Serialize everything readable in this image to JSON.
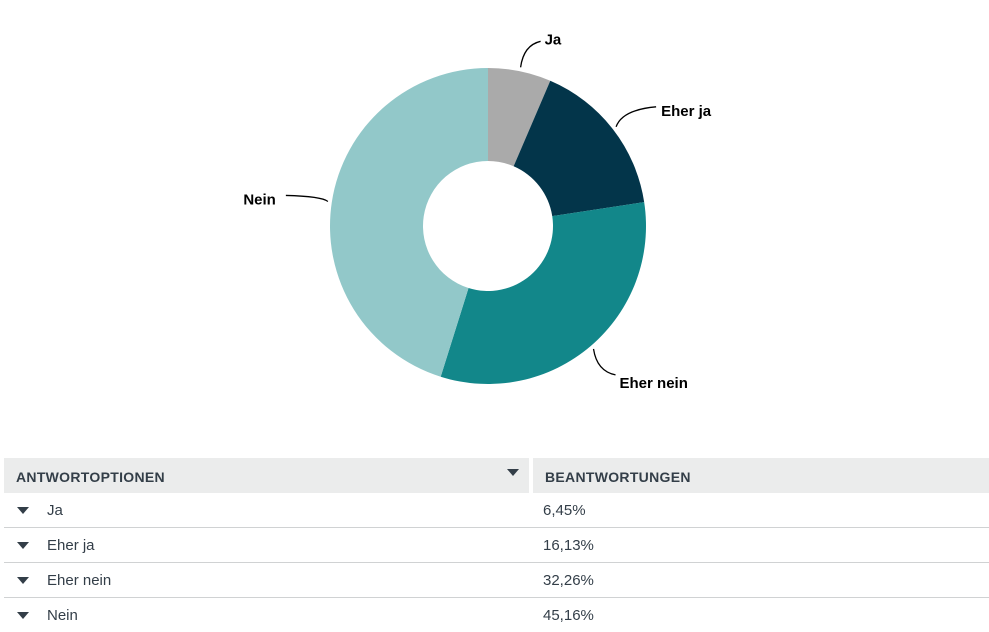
{
  "chart_data": {
    "type": "pie",
    "donut": true,
    "categories": [
      "Ja",
      "Eher ja",
      "Eher nein",
      "Nein"
    ],
    "values": [
      6.45,
      16.13,
      32.26,
      45.16
    ],
    "unit": "%",
    "colors": [
      "#aaaaaa",
      "#03354a",
      "#12878a",
      "#92c8c9"
    ],
    "start_angle": "12 o'clock",
    "direction": "clockwise",
    "legend": "none (slice labels with leader lines)"
  },
  "table": {
    "headers": {
      "options": "ANTWORTOPTIONEN",
      "responses": "BEANTWORTUNGEN"
    },
    "rows": [
      {
        "option": "Ja",
        "percent": "6,45%"
      },
      {
        "option": "Eher ja",
        "percent": "16,13%"
      },
      {
        "option": "Eher nein",
        "percent": "32,26%"
      },
      {
        "option": "Nein",
        "percent": "45,16%"
      }
    ]
  }
}
